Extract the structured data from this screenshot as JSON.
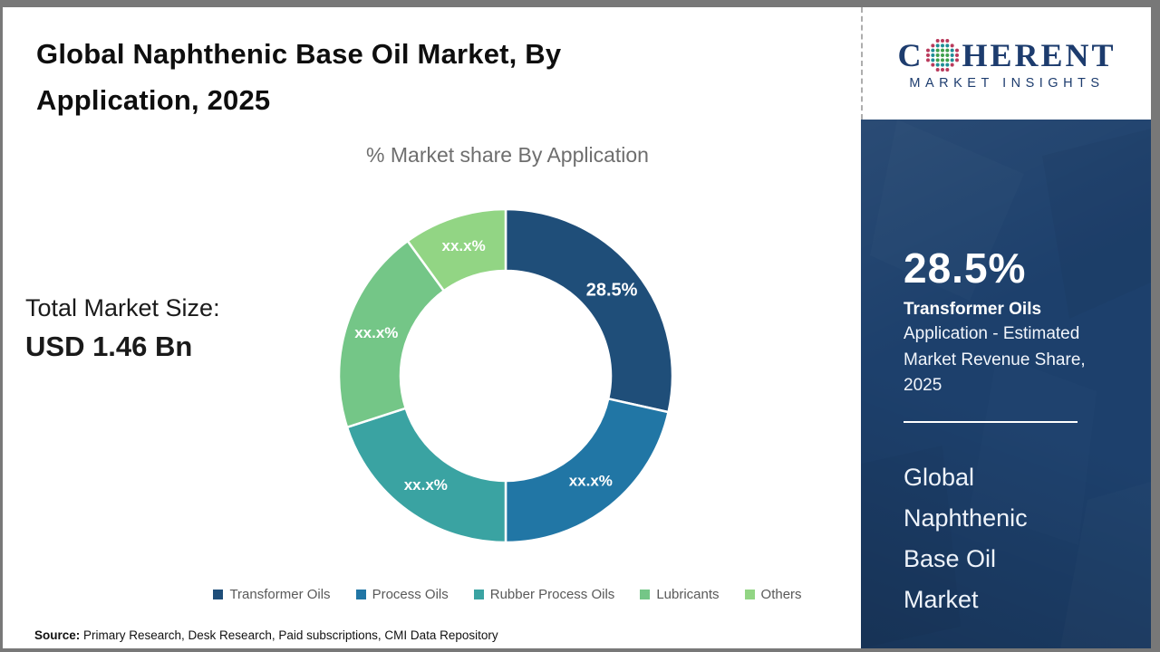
{
  "header": {
    "title": "Global Naphthenic Base Oil Market, By Application, 2025"
  },
  "chart_data": {
    "type": "pie",
    "subtype": "donut",
    "title": "% Market share By Application",
    "categories": [
      "Transformer Oils",
      "Process Oils",
      "Rubber Process Oils",
      "Lubricants",
      "Others"
    ],
    "values": [
      28.5,
      21.5,
      20,
      20,
      10
    ],
    "slice_labels": [
      "28.5%",
      "xx.x%",
      "xx.x%",
      "xx.x%",
      "xx.x%"
    ],
    "colors": [
      "#1f4e79",
      "#2176a5",
      "#3aa3a2",
      "#74c687",
      "#92d584"
    ],
    "start_angle_deg": 0,
    "direction": "clockwise",
    "outer_radius": 184,
    "inner_radius": 116,
    "label_radius": 150,
    "legend_position": "bottom",
    "note": "only the 28.5% slice value is shown; remaining slices masked as xx.x%"
  },
  "total_market": {
    "label": "Total Market Size:",
    "value": "USD 1.46 Bn"
  },
  "source": {
    "label": "Source:",
    "text": " Primary Research, Desk Research, Paid subscriptions, CMI Data Repository"
  },
  "logo": {
    "brand_first_letter": "C",
    "brand_rest": "HERENT",
    "tagline": "MARKET INSIGHTS",
    "navy": "#1d3c6e",
    "globe_dot_colors": {
      "inner": "#3fa04b",
      "middle": "#1f8e96",
      "outer": "#b93a5c"
    }
  },
  "sidebar": {
    "stat_value": "28.5%",
    "stat_title": "Transformer Oils",
    "stat_desc": "Application - Estimated Market Revenue Share, 2025",
    "market_name": "Global Naphthenic Base Oil Market",
    "background": "#1d406c"
  }
}
